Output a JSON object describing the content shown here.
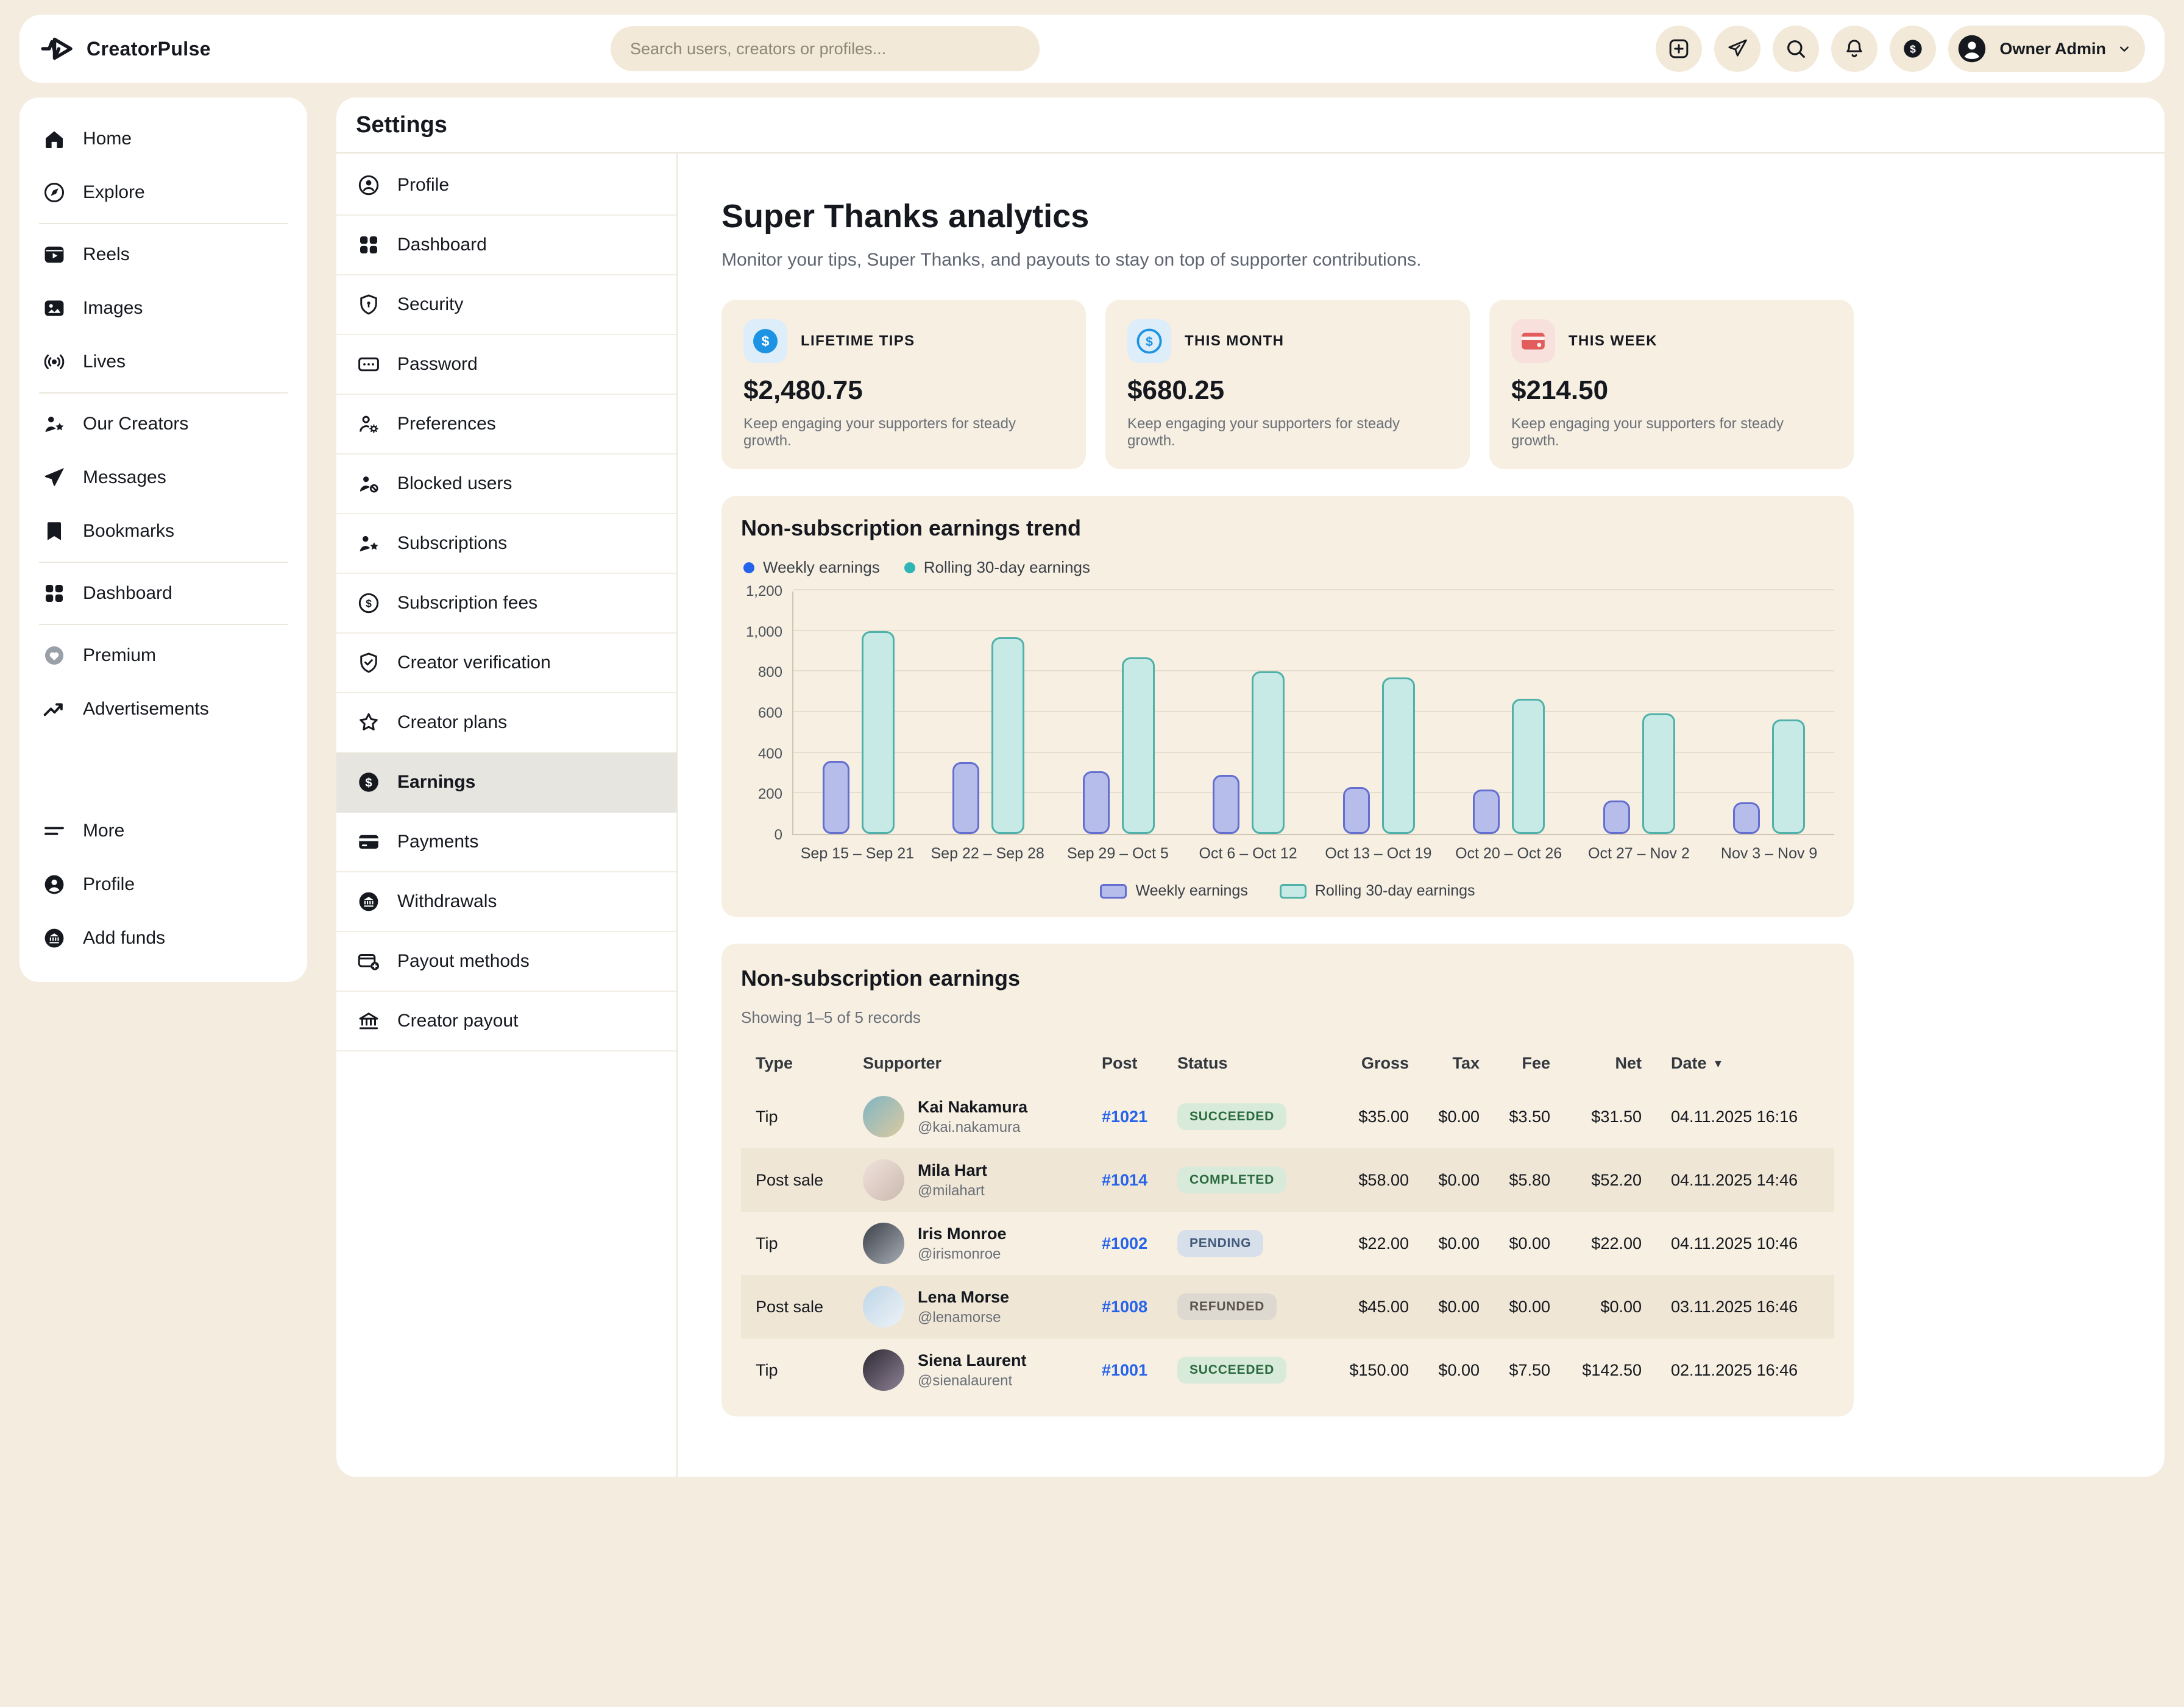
{
  "header": {
    "app_name": "CreatorPulse",
    "search_placeholder": "Search users, creators or profiles...",
    "account_label": "Owner Admin",
    "actions": [
      {
        "name": "create-button",
        "icon": "create"
      },
      {
        "name": "send-button",
        "icon": "send"
      },
      {
        "name": "search-button",
        "icon": "search"
      },
      {
        "name": "notifications-button",
        "icon": "bell"
      },
      {
        "name": "funds-button",
        "icon": "funds"
      }
    ]
  },
  "sidebar": {
    "sections": [
      {
        "items": [
          {
            "icon": "home",
            "label": "Home"
          },
          {
            "icon": "explore",
            "label": "Explore"
          }
        ]
      },
      {
        "items": [
          {
            "icon": "reels",
            "label": "Reels"
          },
          {
            "icon": "images",
            "label": "Images"
          },
          {
            "icon": "lives",
            "label": "Lives"
          }
        ]
      },
      {
        "items": [
          {
            "icon": "creators",
            "label": "Our Creators"
          },
          {
            "icon": "messages",
            "label": "Messages"
          },
          {
            "icon": "bookmarks",
            "label": "Bookmarks"
          }
        ]
      },
      {
        "items": [
          {
            "icon": "grid",
            "label": "Dashboard"
          }
        ]
      },
      {
        "items": [
          {
            "icon": "premium",
            "label": "Premium"
          },
          {
            "icon": "ads",
            "label": "Advertisements"
          }
        ]
      },
      {
        "bottom": true,
        "items": [
          {
            "icon": "more",
            "label": "More"
          },
          {
            "icon": "profile",
            "label": "Profile"
          },
          {
            "icon": "addfunds",
            "label": "Add funds"
          }
        ]
      }
    ]
  },
  "settings": {
    "title": "Settings",
    "nav": [
      {
        "icon": "s_profile",
        "label": "Profile"
      },
      {
        "icon": "grid",
        "label": "Dashboard"
      },
      {
        "icon": "s_security",
        "label": "Security"
      },
      {
        "icon": "s_password",
        "label": "Password"
      },
      {
        "icon": "s_preferences",
        "label": "Preferences"
      },
      {
        "icon": "s_blocked",
        "label": "Blocked users"
      },
      {
        "icon": "creators",
        "label": "Subscriptions"
      },
      {
        "icon": "s_coin",
        "label": "Subscription fees"
      },
      {
        "icon": "s_verification",
        "label": "Creator verification"
      },
      {
        "icon": "s_star",
        "label": "Creator plans"
      },
      {
        "icon": "s_earnings",
        "label": "Earnings",
        "active": true
      },
      {
        "icon": "s_payments",
        "label": "Payments"
      },
      {
        "icon": "addfunds",
        "label": "Withdrawals"
      },
      {
        "icon": "s_payout",
        "label": "Payout methods"
      },
      {
        "icon": "s_bank",
        "label": "Creator payout"
      }
    ]
  },
  "page": {
    "title": "Super Thanks analytics",
    "subtitle": "Monitor your tips, Super Thanks, and payouts to stay on top of supporter contributions."
  },
  "stats": [
    {
      "icon": "coin-solid",
      "tile": "#ddedf9",
      "label": "LIFETIME TIPS",
      "value": "$2,480.75",
      "caption": "Keep engaging your supporters for steady growth."
    },
    {
      "icon": "coin-outline",
      "tile": "#ddedf9",
      "label": "THIS MONTH",
      "value": "$680.25",
      "caption": "Keep engaging your supporters for steady growth."
    },
    {
      "icon": "card-red",
      "tile": "#f8e1dc",
      "label": "THIS WEEK",
      "value": "$214.50",
      "caption": "Keep engaging your supporters for steady growth."
    }
  ],
  "chart_data": {
    "type": "bar",
    "title": "Non-subscription earnings trend",
    "categories": [
      "Sep 15 – Sep 21",
      "Sep 22 – Sep 28",
      "Sep 29 – Oct 5",
      "Oct 6 – Oct 12",
      "Oct 13 – Oct 19",
      "Oct 20 – Oct 26",
      "Oct 27 – Nov 2",
      "Nov 3 – Nov 9"
    ],
    "series": [
      {
        "name": "Weekly earnings",
        "values": [
          360,
          355,
          310,
          290,
          230,
          220,
          165,
          155
        ],
        "fill": "#b7bdea",
        "stroke": "#636ed0",
        "dot": "#2563eb"
      },
      {
        "name": "Rolling 30-day earnings",
        "values": [
          1000,
          970,
          870,
          800,
          770,
          665,
          595,
          565
        ],
        "fill": "#c7eae6",
        "stroke": "#4fb1a9",
        "dot": "#2fb5b5"
      }
    ],
    "ylim": [
      0,
      1200
    ],
    "yticks": [
      {
        "v": 0,
        "label": "0"
      },
      {
        "v": 200,
        "label": "200"
      },
      {
        "v": 400,
        "label": "400"
      },
      {
        "v": 600,
        "label": "600"
      },
      {
        "v": 800,
        "label": "800"
      },
      {
        "v": 1000,
        "label": "1,000"
      },
      {
        "v": 1200,
        "label": "1,200"
      }
    ],
    "grid": true,
    "legend_positions": [
      "top-left",
      "bottom-center"
    ]
  },
  "table": {
    "title": "Non-subscription earnings",
    "summary": "Showing 1–5 of 5 records",
    "columns": [
      {
        "label": "Type",
        "align": "left"
      },
      {
        "label": "Supporter",
        "align": "left"
      },
      {
        "label": "Post",
        "align": "left"
      },
      {
        "label": "Status",
        "align": "left"
      },
      {
        "label": "Gross",
        "align": "right"
      },
      {
        "label": "Tax",
        "align": "right"
      },
      {
        "label": "Fee",
        "align": "right"
      },
      {
        "label": "Net",
        "align": "right"
      },
      {
        "label": "Date",
        "align": "left",
        "sort": "desc",
        "sortable": true
      }
    ],
    "rows": [
      {
        "type": "Tip",
        "name": "Kai Nakamura",
        "handle": "@kai.nakamura",
        "avatar": [
          "#7fb6c4",
          "#dcc9a0"
        ],
        "post": "#1021",
        "status": "SUCCEEDED",
        "status_kind": "success",
        "gross": "$35.00",
        "tax": "$0.00",
        "fee": "$3.50",
        "net": "$31.50",
        "date": "04.11.2025 16:16"
      },
      {
        "type": "Post sale",
        "name": "Mila Hart",
        "handle": "@milahart",
        "avatar": [
          "#f0e2dc",
          "#cbb9af"
        ],
        "post": "#1014",
        "status": "COMPLETED",
        "status_kind": "success",
        "gross": "$58.00",
        "tax": "$0.00",
        "fee": "$5.80",
        "net": "$52.20",
        "date": "04.11.2025 14:46"
      },
      {
        "type": "Tip",
        "name": "Iris Monroe",
        "handle": "@irismonroe",
        "avatar": [
          "#3b4049",
          "#a7adb5"
        ],
        "post": "#1002",
        "status": "PENDING",
        "status_kind": "pending",
        "gross": "$22.00",
        "tax": "$0.00",
        "fee": "$0.00",
        "net": "$22.00",
        "date": "04.11.2025 10:46"
      },
      {
        "type": "Post sale",
        "name": "Lena Morse",
        "handle": "@lenamorse",
        "avatar": [
          "#bdd5e7",
          "#eef3f7"
        ],
        "post": "#1008",
        "status": "REFUNDED",
        "status_kind": "refunded",
        "gross": "$45.00",
        "tax": "$0.00",
        "fee": "$0.00",
        "net": "$0.00",
        "date": "03.11.2025 16:46"
      },
      {
        "type": "Tip",
        "name": "Siena Laurent",
        "handle": "@sienalaurent",
        "avatar": [
          "#2e2933",
          "#8d8296"
        ],
        "post": "#1001",
        "status": "SUCCEEDED",
        "status_kind": "success",
        "gross": "$150.00",
        "tax": "$0.00",
        "fee": "$7.50",
        "net": "$142.50",
        "date": "02.11.2025 16:46"
      }
    ]
  },
  "colors": {
    "page_bg": "#f4ecdf",
    "panel_bg": "#ffffff",
    "card_bg": "#f6efe2",
    "accent_blue": "#2563eb",
    "teal": "#2fb5b5",
    "stat_blue": "#1d93e3",
    "stat_red": "#e25c5c",
    "badge_success_bg": "#d8ead9",
    "badge_success_text": "#2b6a3f",
    "badge_pending_bg": "#d7e0ea",
    "badge_pending_text": "#42597a",
    "badge_refunded_bg": "#ded9d0",
    "badge_refunded_text": "#5a554c"
  }
}
